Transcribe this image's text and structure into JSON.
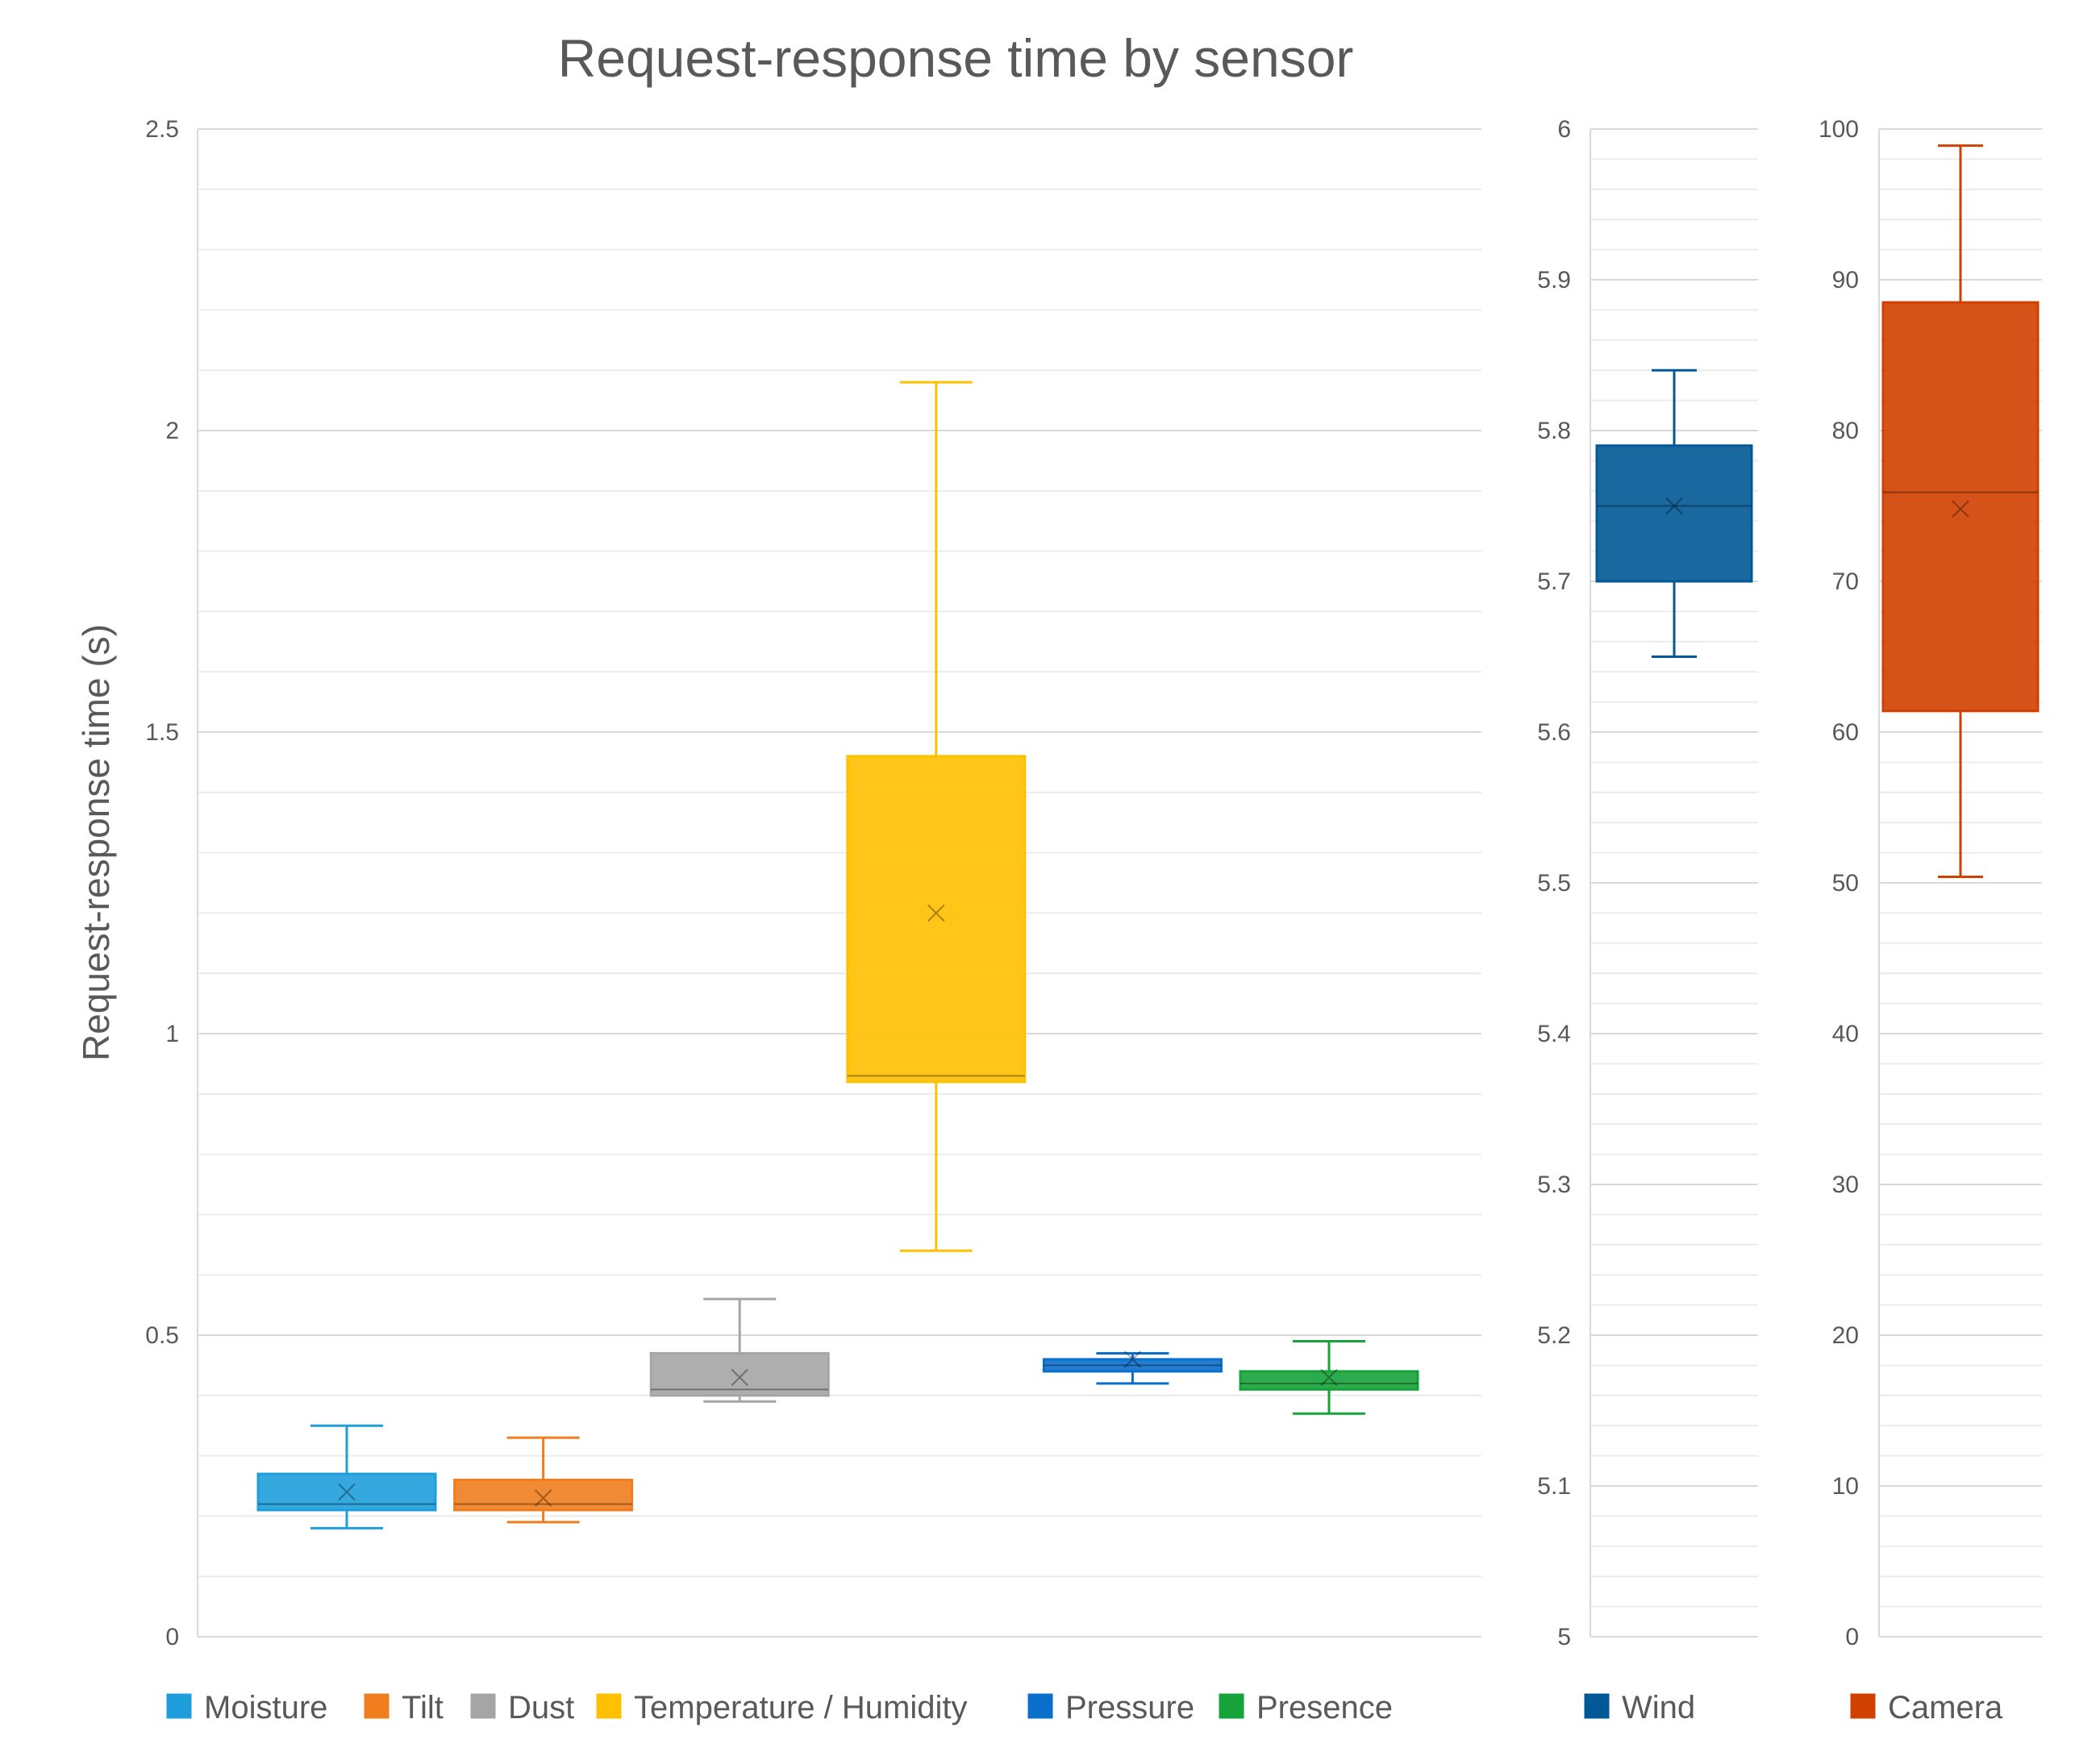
{
  "chart_data": {
    "type": "box",
    "title": "Request-response time by sensor",
    "ylabel": "Request-response time (s)",
    "xlabel": "",
    "panels": [
      {
        "id": "main",
        "ylim": [
          0,
          2.5
        ],
        "yticks": [
          0,
          0.5,
          1,
          1.5,
          2,
          2.5
        ],
        "tick_labels": [
          "0",
          "0.5",
          "1",
          "1.5",
          "2",
          "2.5"
        ],
        "series": [
          {
            "name": "Moisture",
            "color": "#1E9FDB",
            "min": 0.18,
            "q1": 0.21,
            "median": 0.22,
            "q3": 0.27,
            "max": 0.35,
            "mean": 0.24
          },
          {
            "name": "Tilt",
            "color": "#F07D1E",
            "min": 0.19,
            "q1": 0.21,
            "median": 0.22,
            "q3": 0.26,
            "max": 0.33,
            "mean": 0.23
          },
          {
            "name": "Dust",
            "color": "#A5A5A5",
            "min": 0.39,
            "q1": 0.4,
            "median": 0.41,
            "q3": 0.47,
            "max": 0.56,
            "mean": 0.43
          },
          {
            "name": "Temperature / Humidity",
            "color": "#FFC000",
            "min": 0.64,
            "q1": 0.92,
            "median": 0.93,
            "q3": 1.46,
            "max": 2.08,
            "mean": 1.2
          },
          {
            "name": "Pressure",
            "color": "#0A6FCC",
            "min": 0.42,
            "q1": 0.44,
            "median": 0.45,
            "q3": 0.46,
            "max": 0.47,
            "mean": 0.46
          },
          {
            "name": "Presence",
            "color": "#16A33A",
            "min": 0.37,
            "q1": 0.41,
            "median": 0.42,
            "q3": 0.44,
            "max": 0.49,
            "mean": 0.43
          }
        ]
      },
      {
        "id": "wind",
        "ylim": [
          5,
          6
        ],
        "yticks": [
          5,
          5.1,
          5.2,
          5.3,
          5.4,
          5.5,
          5.6,
          5.7,
          5.8,
          5.9,
          6
        ],
        "tick_labels": [
          "5",
          "5.1",
          "5.2",
          "5.3",
          "5.4",
          "5.5",
          "5.6",
          "5.7",
          "5.8",
          "5.9",
          "6"
        ],
        "series": [
          {
            "name": "Wind",
            "color": "#005896",
            "min": 5.65,
            "q1": 5.7,
            "median": 5.75,
            "q3": 5.79,
            "max": 5.84,
            "mean": 5.75
          }
        ]
      },
      {
        "id": "camera",
        "ylim": [
          0,
          100
        ],
        "yticks": [
          0,
          10,
          20,
          30,
          40,
          50,
          60,
          70,
          80,
          90,
          100
        ],
        "tick_labels": [
          "0",
          "10",
          "20",
          "30",
          "40",
          "50",
          "60",
          "70",
          "80",
          "90",
          "100"
        ],
        "series": [
          {
            "name": "Camera",
            "color": "#D04000",
            "min": 50.4,
            "q1": 61.4,
            "median": 75.9,
            "q3": 88.5,
            "max": 98.9,
            "mean": 74.8
          }
        ]
      }
    ],
    "legend_position": "bottom"
  }
}
